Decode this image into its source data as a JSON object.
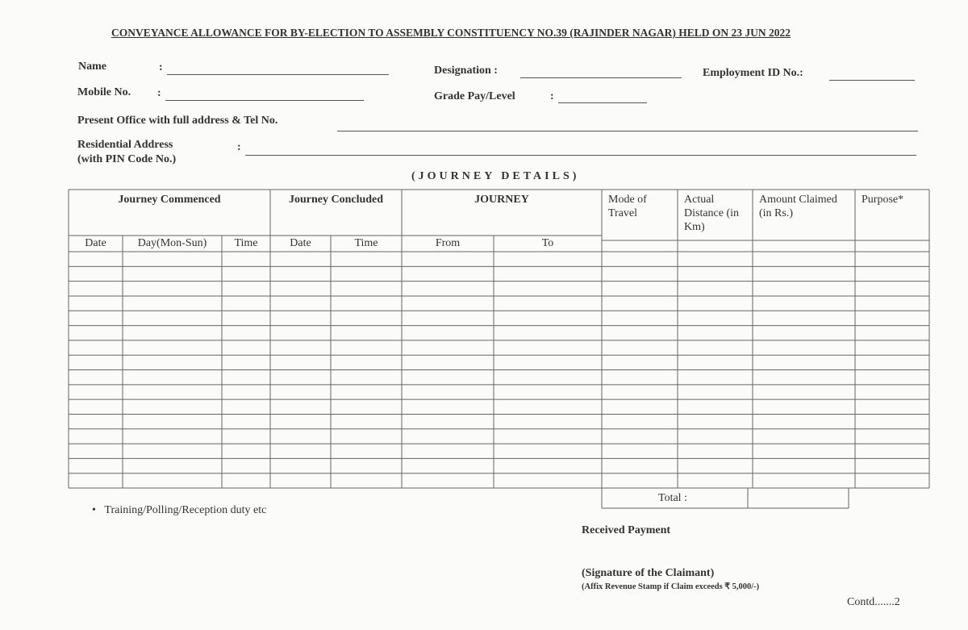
{
  "title": "CONVEYANCE ALLOWANCE FOR BY-ELECTION TO ASSEMBLY CONSTITUENCY NO.39 (RAJINDER NAGAR) HELD ON 23 JUN 2022",
  "separator": ":",
  "fields": {
    "name": "Name",
    "designation": "Designation :",
    "employment_id": "Employment ID No.:",
    "mobile": "Mobile No.",
    "grade_pay": "Grade Pay/Level",
    "present_office": "Present Office with full address & Tel No.",
    "residential_address": "Residential Address",
    "pin_code": "(with PIN Code No.)"
  },
  "section_heading": "(JOURNEY DETAILS)",
  "table": {
    "group_headers": [
      "Journey Commenced",
      "Journey Concluded",
      "JOURNEY",
      "Mode of Travel",
      "Actual Distance (in Km)",
      "Amount Claimed (in Rs.)",
      "Purpose*"
    ],
    "sub_headers": [
      "Date",
      "Day(Mon-Sun)",
      "Time",
      "Date",
      "Time",
      "From",
      "To"
    ],
    "total_label": "Total :"
  },
  "footnote": "Training/Polling/Reception duty etc",
  "received_payment": "Received Payment",
  "signature": "(Signature of the Claimant)",
  "stamp_note": "(Affix Revenue Stamp if Claim exceeds ₹ 5,000/-)",
  "contd": "Contd.......2"
}
